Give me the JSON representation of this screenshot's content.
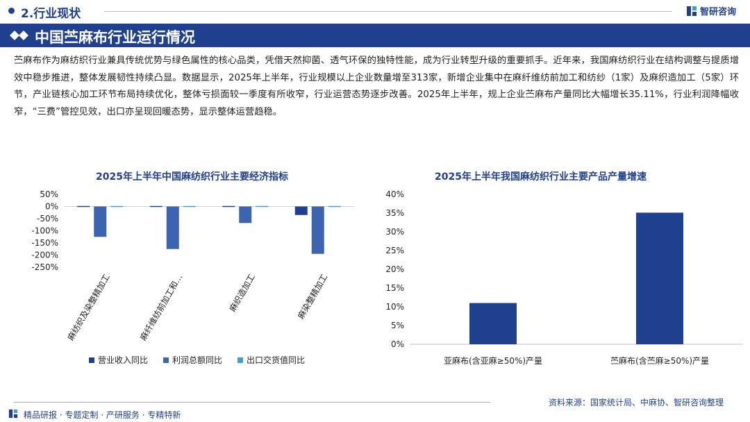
{
  "header": {
    "section_label": "2.行业现状",
    "logo_text": "智研咨询",
    "banner_title": "中国苎麻布行业运行情况"
  },
  "intro_text": "苎麻布作为麻纺织行业兼具传统优势与绿色属性的核心品类，凭借天然抑菌、透气环保的独特性能，成为行业转型升级的重要抓手。近年来，我国麻纺织行业在结构调整与提质增效中稳步推进，整体发展韧性持续凸显。数据显示，2025年上半年，行业规模以上企业数量增至313家，新增企业集中在麻纤维纺前加工和纺纱（1家）及麻织造加工（5家）环节，产业链核心加工环节布局持续优化，整体亏损面较一季度有所收窄，行业运营态势逐步改善。2025年上半年，规上企业苎麻布产量同比大幅增长35.11%，行业利润降幅收窄，“三费”管控见效，出口亦呈现回暖态势，显示整体运营趋稳。",
  "colors": {
    "primary": "#1f3f8f",
    "series_dark": "#1f3f8f",
    "series_mid": "#3c64b1",
    "series_light": "#3fa0d0"
  },
  "chart_data": [
    {
      "type": "bar",
      "title": "2025年上半年中国麻纺织行业主要经济指标",
      "categories": [
        "麻纺织及染整精加工",
        "麻纤维纺前加工和纺纱",
        "麻织造加工",
        "麻染整精加工"
      ],
      "category_tick_labels": [
        "麻纺织及染整精加工",
        "麻纤维纺前加工和…",
        "麻织造加工",
        "麻染整精加工"
      ],
      "series": [
        {
          "name": "营业收入同比",
          "values": [
            -3,
            -4,
            0,
            -35
          ]
        },
        {
          "name": "利润总额同比",
          "values": [
            -125,
            -175,
            -68,
            -195
          ]
        },
        {
          "name": "出口交货值同比",
          "values": [
            3,
            2,
            3,
            0
          ]
        }
      ],
      "ylim": [
        -250,
        50
      ],
      "yticks": [
        50,
        0,
        -50,
        -100,
        -150,
        -200,
        -250
      ],
      "ytick_labels": [
        "50%",
        "0%",
        "-50%",
        "-100%",
        "-150%",
        "-200%",
        "-250%"
      ],
      "legend_position": "bottom",
      "grid": false
    },
    {
      "type": "bar",
      "title": "2025年上半年我国麻纺织行业主要产品产量增速",
      "categories": [
        "亚麻布(含亚麻≥50%)产量",
        "苎麻布(含苎麻≥50%)产量"
      ],
      "values": [
        11,
        35.11
      ],
      "ylim": [
        0,
        40
      ],
      "yticks": [
        0,
        5,
        10,
        15,
        20,
        25,
        30,
        35,
        40
      ],
      "ytick_labels": [
        "0%",
        "5%",
        "10%",
        "15%",
        "20%",
        "25%",
        "30%",
        "35%",
        "40%"
      ],
      "grid": false
    }
  ],
  "footer": {
    "source": "资料来源：国家统计局、中麻协、智研咨询整理",
    "services": "精品研报 · 专题定制 · 产研服务 · 专精特新"
  }
}
